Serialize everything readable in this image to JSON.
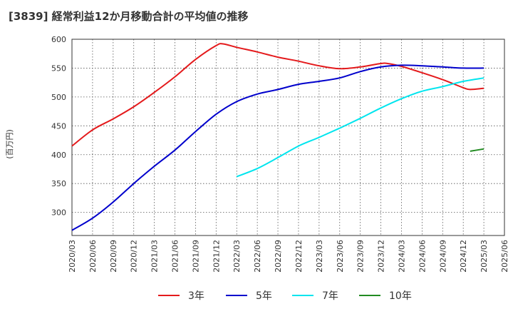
{
  "chart_data": {
    "type": "line",
    "title": "[3839]  経常利益12か月移動合計の平均値の推移",
    "ylabel": "(百万円)",
    "xlabel": "",
    "ylim": [
      260,
      600
    ],
    "yticks": [
      300,
      350,
      400,
      450,
      500,
      550,
      600
    ],
    "x_ticks": [
      "2020/03",
      "2020/06",
      "2020/09",
      "2020/12",
      "2021/03",
      "2021/06",
      "2021/09",
      "2021/12",
      "2022/03",
      "2022/06",
      "2022/09",
      "2022/12",
      "2023/03",
      "2023/06",
      "2023/09",
      "2023/12",
      "2024/03",
      "2024/06",
      "2024/09",
      "2024/12",
      "2025/03",
      "2025/06"
    ],
    "grid": true,
    "legend_position": "bottom",
    "series": [
      {
        "name": "3年",
        "color": "#e41a1c",
        "x": [
          "2020/03",
          "2020/06",
          "2020/09",
          "2020/12",
          "2021/03",
          "2021/06",
          "2021/09",
          "2021/12",
          "2022/01",
          "2022/03",
          "2022/06",
          "2022/09",
          "2022/12",
          "2023/03",
          "2023/06",
          "2023/09",
          "2023/12",
          "2024/01",
          "2024/03",
          "2024/06",
          "2024/09",
          "2024/12",
          "2025/01",
          "2025/03"
        ],
        "values": [
          415,
          443,
          462,
          483,
          508,
          535,
          565,
          589,
          592,
          586,
          578,
          569,
          562,
          554,
          549,
          552,
          558,
          558,
          553,
          542,
          530,
          516,
          513,
          515
        ]
      },
      {
        "name": "5年",
        "color": "#0000cc",
        "x": [
          "2020/03",
          "2020/06",
          "2020/09",
          "2020/12",
          "2021/03",
          "2021/06",
          "2021/09",
          "2021/12",
          "2022/03",
          "2022/06",
          "2022/09",
          "2022/12",
          "2023/03",
          "2023/06",
          "2023/09",
          "2023/12",
          "2024/03",
          "2024/06",
          "2024/09",
          "2024/12",
          "2025/03"
        ],
        "values": [
          269,
          290,
          318,
          350,
          380,
          408,
          440,
          470,
          492,
          505,
          513,
          522,
          527,
          533,
          544,
          552,
          555,
          554,
          552,
          550,
          550
        ]
      },
      {
        "name": "7年",
        "color": "#00e5ee",
        "x": [
          "2022/03",
          "2022/06",
          "2022/09",
          "2022/12",
          "2023/03",
          "2023/06",
          "2023/09",
          "2023/12",
          "2024/03",
          "2024/06",
          "2024/09",
          "2024/12",
          "2025/03"
        ],
        "values": [
          362,
          376,
          395,
          415,
          430,
          446,
          463,
          481,
          497,
          510,
          518,
          527,
          533
        ]
      },
      {
        "name": "10年",
        "color": "#228b22",
        "x": [
          "2025/01",
          "2025/03"
        ],
        "values": [
          406,
          410
        ]
      }
    ]
  }
}
